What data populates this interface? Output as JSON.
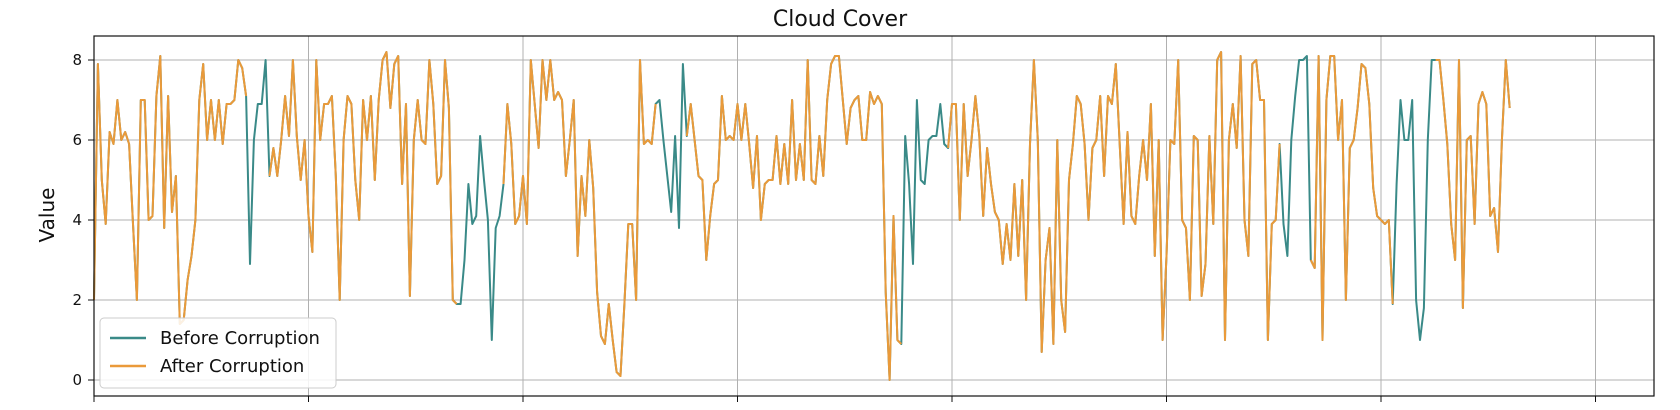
{
  "chart_data": {
    "type": "line",
    "title": "Cloud Cover",
    "xlabel": "",
    "ylabel": "Value",
    "ylim": [
      -0.4,
      8.6
    ],
    "xlim": [
      0,
      400
    ],
    "yticks": [
      0,
      2,
      4,
      6,
      8
    ],
    "xticks": [
      0,
      55,
      110,
      165,
      220,
      275,
      330,
      385
    ],
    "grid": true,
    "legend_position": "lower-left",
    "colors": {
      "before": "#3a8a88",
      "after": "#ea9a3a"
    },
    "series": [
      {
        "name": "Before Corruption",
        "values": [
          2.0,
          7.9,
          5.0,
          3.9,
          6.2,
          5.9,
          7.0,
          6.0,
          6.2,
          5.9,
          3.9,
          2.0,
          7.0,
          7.0,
          4.0,
          4.1,
          7.1,
          8.1,
          3.8,
          7.1,
          4.2,
          5.1,
          1.4,
          1.5,
          2.5,
          3.1,
          4.0,
          7.0,
          7.9,
          6.0,
          7.0,
          6.0,
          7.0,
          5.9,
          6.9,
          6.9,
          7.0,
          8.0,
          7.8,
          7.1,
          2.9,
          6.0,
          6.9,
          6.9,
          8.0,
          5.1,
          5.8,
          5.1,
          6.0,
          7.1,
          6.1,
          8.0,
          6.1,
          5.0,
          6.0,
          4.1,
          3.2,
          8.0,
          6.0,
          6.9,
          6.9,
          7.1,
          5.1,
          2.0,
          6.0,
          7.1,
          6.9,
          5.0,
          4.0,
          7.0,
          6.0,
          7.1,
          5.0,
          7.0,
          8.0,
          8.2,
          6.8,
          7.9,
          8.1,
          4.9,
          6.9,
          2.1,
          6.0,
          7.0,
          6.0,
          5.9,
          8.0,
          6.9,
          4.9,
          5.1,
          8.0,
          6.8,
          2.0,
          1.9,
          1.9,
          3.0,
          4.9,
          3.9,
          4.1,
          6.1,
          5.0,
          4.0,
          1.0,
          3.8,
          4.1,
          4.9,
          6.9,
          5.9,
          3.9,
          4.1,
          5.1,
          3.9,
          8.0,
          6.9,
          5.8,
          8.0,
          7.0,
          8.0,
          7.0,
          7.2,
          7.0,
          5.1,
          6.0,
          7.0,
          3.1,
          5.1,
          4.1,
          6.0,
          4.8,
          2.2,
          1.1,
          0.9,
          1.9,
          1.0,
          0.2,
          0.1,
          1.9,
          3.9,
          3.9,
          2.0,
          8.0,
          5.9,
          6.0,
          5.9,
          6.9,
          7.0,
          6.0,
          5.1,
          4.2,
          6.1,
          3.8,
          7.9,
          6.1,
          6.9,
          6.0,
          5.1,
          5.0,
          3.0,
          4.1,
          4.9,
          5.0,
          7.1,
          6.0,
          6.1,
          6.0,
          6.9,
          6.0,
          6.9,
          5.9,
          4.8,
          6.1,
          4.0,
          4.9,
          5.0,
          5.0,
          6.1,
          4.9,
          5.9,
          4.9,
          7.0,
          5.0,
          5.9,
          5.0,
          8.0,
          5.0,
          4.9,
          6.1,
          5.1,
          7.0,
          7.9,
          8.1,
          8.1,
          7.0,
          5.9,
          6.8,
          7.0,
          7.1,
          6.0,
          6.0,
          7.2,
          6.9,
          7.1,
          6.9,
          2.2,
          0.0,
          4.1,
          1.0,
          0.9,
          6.1,
          4.9,
          2.9,
          7.0,
          5.0,
          4.9,
          6.0,
          6.1,
          6.1,
          6.9,
          5.9,
          5.8,
          6.9,
          6.9,
          4.0,
          6.9,
          5.1,
          6.0,
          7.1,
          6.1,
          4.1,
          5.8,
          4.9,
          4.2,
          4.0,
          2.9,
          3.9,
          3.0,
          4.9,
          3.1,
          5.0,
          2.0,
          5.9,
          8.0,
          6.0,
          0.7,
          3.0,
          3.8,
          0.9,
          6.0,
          2.0,
          1.2,
          5.0,
          5.9,
          7.1,
          6.9,
          5.9,
          4.0,
          5.8,
          6.0,
          7.1,
          5.1,
          7.1,
          6.9,
          7.9,
          5.9,
          3.9,
          6.2,
          4.1,
          3.9,
          5.1,
          6.0,
          5.0,
          6.9,
          3.1,
          6.0,
          1.0,
          3.1,
          6.0,
          5.9,
          8.0,
          4.0,
          3.8,
          2.0,
          6.1,
          6.0,
          2.1,
          2.9,
          6.1,
          3.9,
          8.0,
          8.2,
          1.0,
          6.0,
          6.9,
          5.8,
          8.1,
          4.0,
          3.1,
          7.9,
          8.0,
          7.0,
          7.0,
          1.0,
          3.9,
          4.0,
          5.9,
          3.9,
          3.1,
          6.0,
          7.1,
          8.0,
          8.0,
          8.1,
          3.0,
          2.8,
          8.1,
          1.0,
          7.0,
          8.1,
          8.1,
          6.0,
          7.0,
          2.0,
          5.8,
          6.0,
          6.8,
          7.9,
          7.8,
          6.9,
          4.8,
          4.1,
          4.0,
          3.9,
          4.0,
          1.9,
          4.9,
          7.0,
          6.0,
          6.0,
          7.0,
          2.0,
          1.0,
          1.8,
          6.0,
          8.0,
          8.0,
          8.0,
          7.0,
          5.9,
          3.9,
          3.0,
          8.0,
          1.8,
          6.0,
          6.1,
          3.9,
          6.9,
          7.2,
          6.9,
          4.1,
          4.3,
          3.2,
          6.0,
          8.0,
          6.8
        ],
        "color": "#3a8a88"
      },
      {
        "name": "After Corruption",
        "values": [
          2.0,
          7.9,
          5.0,
          3.9,
          6.2,
          5.9,
          7.0,
          6.0,
          6.2,
          5.9,
          3.9,
          2.0,
          7.0,
          7.0,
          4.0,
          4.1,
          7.1,
          8.1,
          3.8,
          7.1,
          4.2,
          5.1,
          1.4,
          1.5,
          2.5,
          3.1,
          4.0,
          7.0,
          7.9,
          6.0,
          7.0,
          6.0,
          7.0,
          5.9,
          6.9,
          6.9,
          7.0,
          8.0,
          7.8,
          7.1,
          2.9,
          6.0,
          6.9,
          6.9,
          8.0,
          5.1,
          5.8,
          5.1,
          6.0,
          7.1,
          6.1,
          8.0,
          6.1,
          5.0,
          6.0,
          4.1,
          3.2,
          8.0,
          6.0,
          6.9,
          6.9,
          7.1,
          5.1,
          2.0,
          6.0,
          7.1,
          6.9,
          5.0,
          4.0,
          7.0,
          6.0,
          7.1,
          5.0,
          7.0,
          8.0,
          8.2,
          6.8,
          7.9,
          8.1,
          4.9,
          6.9,
          2.1,
          6.0,
          7.0,
          6.0,
          5.9,
          8.0,
          6.9,
          4.9,
          5.1,
          8.0,
          6.8,
          2.0,
          1.9,
          1.9,
          3.0,
          4.9,
          3.9,
          4.1,
          6.1,
          5.0,
          4.0,
          1.0,
          3.8,
          4.1,
          4.9,
          6.9,
          5.9,
          3.9,
          4.1,
          5.1,
          3.9,
          8.0,
          6.9,
          5.8,
          8.0,
          7.0,
          8.0,
          7.0,
          7.2,
          7.0,
          5.1,
          6.0,
          7.0,
          3.1,
          5.1,
          4.1,
          6.0,
          4.8,
          2.2,
          1.1,
          0.9,
          1.9,
          1.0,
          0.2,
          0.1,
          1.9,
          3.9,
          3.9,
          2.0,
          8.0,
          5.9,
          6.0,
          5.9,
          6.9,
          7.0,
          6.0,
          5.1,
          4.2,
          6.1,
          3.8,
          7.9,
          6.1,
          6.9,
          6.0,
          5.1,
          5.0,
          3.0,
          4.1,
          4.9,
          5.0,
          7.1,
          6.0,
          6.1,
          6.0,
          6.9,
          6.0,
          6.9,
          5.9,
          4.8,
          6.1,
          4.0,
          4.9,
          5.0,
          5.0,
          6.1,
          4.9,
          5.9,
          4.9,
          7.0,
          5.0,
          5.9,
          5.0,
          8.0,
          5.0,
          4.9,
          6.1,
          5.1,
          7.0,
          7.9,
          8.1,
          8.1,
          7.0,
          5.9,
          6.8,
          7.0,
          7.1,
          6.0,
          6.0,
          7.2,
          6.9,
          7.1,
          6.9,
          2.2,
          0.0,
          4.1,
          1.0,
          0.9,
          6.1,
          4.9,
          2.9,
          7.0,
          5.0,
          4.9,
          6.0,
          6.1,
          6.1,
          6.9,
          5.9,
          5.8,
          6.9,
          6.9,
          4.0,
          6.9,
          5.1,
          6.0,
          7.1,
          6.1,
          4.1,
          5.8,
          4.9,
          4.2,
          4.0,
          2.9,
          3.9,
          3.0,
          4.9,
          3.1,
          5.0,
          2.0,
          5.9,
          8.0,
          6.0,
          0.7,
          3.0,
          3.8,
          0.9,
          6.0,
          2.0,
          1.2,
          5.0,
          5.9,
          7.1,
          6.9,
          5.9,
          4.0,
          5.8,
          6.0,
          7.1,
          5.1,
          7.1,
          6.9,
          7.9,
          5.9,
          3.9,
          6.2,
          4.1,
          3.9,
          5.1,
          6.0,
          5.0,
          6.9,
          3.1,
          6.0,
          1.0,
          3.1,
          6.0,
          5.9,
          8.0,
          4.0,
          3.8,
          2.0,
          6.1,
          6.0,
          2.1,
          2.9,
          6.1,
          3.9,
          8.0,
          8.2,
          1.0,
          6.0,
          6.9,
          5.8,
          8.1,
          4.0,
          3.1,
          7.9,
          8.0,
          7.0,
          7.0,
          1.0,
          3.9,
          4.0,
          5.9,
          3.9,
          3.1,
          6.0,
          7.1,
          8.0,
          8.0,
          8.1,
          3.0,
          2.8,
          8.1,
          1.0,
          7.0,
          8.1,
          8.1,
          6.0,
          7.0,
          2.0,
          5.8,
          6.0,
          6.8,
          7.9,
          7.8,
          6.9,
          4.8,
          4.1,
          4.0,
          3.9,
          4.0,
          1.9,
          4.9,
          7.0,
          6.0,
          6.0,
          7.0,
          2.0,
          1.0,
          1.8,
          6.0,
          8.0,
          8.0,
          8.0,
          7.0,
          5.9,
          3.9,
          3.0,
          8.0,
          1.8,
          6.0,
          6.1,
          3.9,
          6.9,
          7.2,
          6.9,
          4.1,
          4.3,
          3.2,
          6.0,
          8.0,
          6.8
        ],
        "gaps": [
          [
            39,
            45
          ],
          [
            93,
            105
          ],
          [
            144,
            152
          ],
          [
            207,
            219
          ],
          [
            304,
            312
          ],
          [
            333,
            344
          ],
          [
            375,
            383
          ]
        ],
        "color": "#ea9a3a"
      }
    ]
  }
}
